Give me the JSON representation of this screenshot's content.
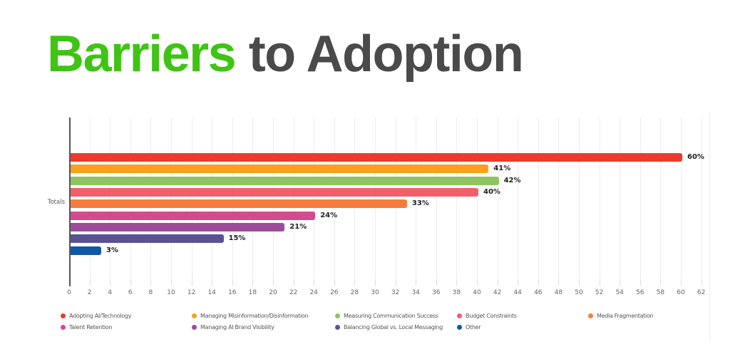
{
  "page": {
    "title_highlight": "Barriers",
    "title_rest": " to Adoption",
    "title_highlight_color": "#3fc415",
    "title_rest_color": "#4a4a4a"
  },
  "chart_data": {
    "type": "bar",
    "orientation": "horizontal",
    "title": "Barriers to Adoption",
    "group_label": "Totals",
    "xlabel": "",
    "ylabel": "",
    "xlim": [
      0,
      62
    ],
    "x_tick_step": 2,
    "grid": true,
    "legend_position": "bottom",
    "series": [
      {
        "name": "Adopting AI/Technology",
        "value": 60,
        "label": "60%",
        "color": "#ee3a2c"
      },
      {
        "name": "Managing Misinformation/Disinformation",
        "value": 41,
        "label": "41%",
        "color": "#f9a11b"
      },
      {
        "name": "Measuring Communication Success",
        "value": 42,
        "label": "42%",
        "color": "#8ec561"
      },
      {
        "name": "Budget Constraints",
        "value": 40,
        "label": "40%",
        "color": "#f25f6b"
      },
      {
        "name": "Media Fragmentation",
        "value": 33,
        "label": "33%",
        "color": "#f57d3c"
      },
      {
        "name": "Talent Retention",
        "value": 24,
        "label": "24%",
        "color": "#d24b8d"
      },
      {
        "name": "Managing AI Brand Visibility",
        "value": 21,
        "label": "21%",
        "color": "#9b4d9a"
      },
      {
        "name": "Balancing Global vs. Local Messaging",
        "value": 15,
        "label": "15%",
        "color": "#5b5192"
      },
      {
        "name": "Other",
        "value": 3,
        "label": "3%",
        "color": "#1058a5"
      }
    ],
    "legend_rows": [
      [
        0,
        1,
        2,
        3,
        4
      ],
      [
        5,
        6,
        7,
        8
      ]
    ]
  }
}
